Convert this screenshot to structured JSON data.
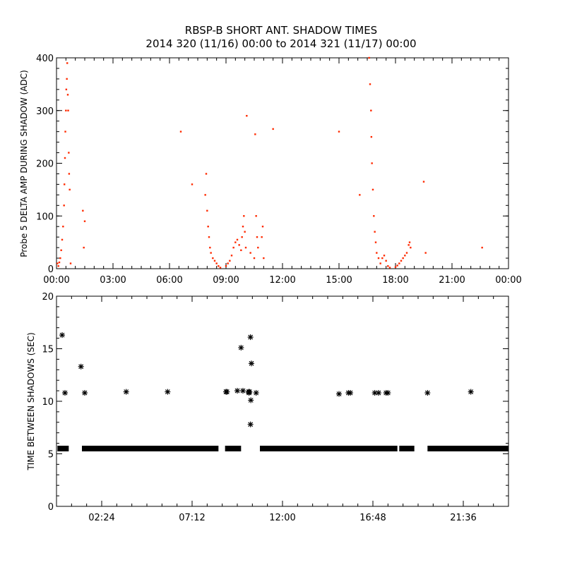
{
  "title_line1": "RBSP-B SHORT ANT. SHADOW TIMES",
  "title_line2": "2014 320 (11/16) 00:00 to 2014 321 (11/17) 00:00",
  "colors": {
    "top_series": "#ff2a00",
    "bottom_series": "#000000",
    "axes": "#000000"
  },
  "chart_data": [
    {
      "type": "scatter",
      "ylabel": "Probe 5 DELTA AMP DURING SHADOW (ADC)",
      "xlabel": "",
      "xlim": [
        0,
        24
      ],
      "ylim": [
        0,
        400
      ],
      "x_unit": "hours",
      "x_tick_values": [
        0,
        3,
        6,
        9,
        12,
        15,
        18,
        21,
        24
      ],
      "x_tick_labels": [
        "00:00",
        "03:00",
        "06:00",
        "09:00",
        "12:00",
        "15:00",
        "18:00",
        "21:00",
        "00:00"
      ],
      "y_tick_values": [
        0,
        100,
        200,
        300,
        400
      ],
      "y_tick_labels": [
        "0",
        "100",
        "200",
        "300",
        "400"
      ],
      "series": [
        {
          "points": [
            [
              0.05,
              10
            ],
            [
              0.1,
              5
            ],
            [
              0.15,
              12
            ],
            [
              0.2,
              20
            ],
            [
              0.25,
              35
            ],
            [
              0.3,
              55
            ],
            [
              0.35,
              80
            ],
            [
              0.4,
              120
            ],
            [
              0.42,
              160
            ],
            [
              0.45,
              210
            ],
            [
              0.47,
              260
            ],
            [
              0.5,
              300
            ],
            [
              0.52,
              340
            ],
            [
              0.55,
              360
            ],
            [
              0.57,
              390
            ],
            [
              0.6,
              330
            ],
            [
              0.62,
              300
            ],
            [
              0.65,
              220
            ],
            [
              0.67,
              180
            ],
            [
              0.7,
              150
            ],
            [
              0.75,
              10
            ],
            [
              1.4,
              110
            ],
            [
              1.45,
              40
            ],
            [
              1.5,
              90
            ],
            [
              6.6,
              260
            ],
            [
              7.2,
              160
            ],
            [
              7.9,
              140
            ],
            [
              7.95,
              180
            ],
            [
              8.0,
              110
            ],
            [
              8.05,
              80
            ],
            [
              8.1,
              60
            ],
            [
              8.15,
              40
            ],
            [
              8.2,
              30
            ],
            [
              8.3,
              20
            ],
            [
              8.4,
              15
            ],
            [
              8.5,
              10
            ],
            [
              8.6,
              5
            ],
            [
              8.7,
              2
            ],
            [
              9.0,
              5
            ],
            [
              9.1,
              10
            ],
            [
              9.2,
              15
            ],
            [
              9.3,
              25
            ],
            [
              9.4,
              40
            ],
            [
              9.5,
              50
            ],
            [
              9.6,
              55
            ],
            [
              9.7,
              45
            ],
            [
              9.8,
              35
            ],
            [
              9.85,
              60
            ],
            [
              9.9,
              80
            ],
            [
              9.95,
              100
            ],
            [
              10.0,
              70
            ],
            [
              10.05,
              40
            ],
            [
              10.1,
              290
            ],
            [
              10.3,
              30
            ],
            [
              10.5,
              20
            ],
            [
              10.55,
              255
            ],
            [
              10.6,
              100
            ],
            [
              10.65,
              60
            ],
            [
              10.7,
              40
            ],
            [
              10.9,
              60
            ],
            [
              10.95,
              80
            ],
            [
              11.0,
              20
            ],
            [
              11.5,
              265
            ],
            [
              15.0,
              260
            ],
            [
              16.1,
              140
            ],
            [
              16.6,
              400
            ],
            [
              16.65,
              350
            ],
            [
              16.7,
              300
            ],
            [
              16.72,
              250
            ],
            [
              16.75,
              200
            ],
            [
              16.8,
              150
            ],
            [
              16.85,
              100
            ],
            [
              16.9,
              70
            ],
            [
              16.95,
              50
            ],
            [
              17.0,
              30
            ],
            [
              17.1,
              20
            ],
            [
              17.2,
              10
            ],
            [
              17.3,
              20
            ],
            [
              17.4,
              25
            ],
            [
              17.5,
              15
            ],
            [
              17.6,
              5
            ],
            [
              17.7,
              2
            ],
            [
              18.0,
              3
            ],
            [
              18.1,
              6
            ],
            [
              18.2,
              10
            ],
            [
              18.3,
              15
            ],
            [
              18.4,
              20
            ],
            [
              18.5,
              25
            ],
            [
              18.6,
              30
            ],
            [
              18.7,
              45
            ],
            [
              18.75,
              50
            ],
            [
              18.8,
              40
            ],
            [
              19.5,
              165
            ],
            [
              19.6,
              30
            ],
            [
              22.6,
              40
            ]
          ]
        }
      ]
    },
    {
      "type": "scatter",
      "ylabel": "TIME BETWEEN SHADOWS (SEC)",
      "xlabel": "",
      "xlim": [
        0,
        24
      ],
      "ylim": [
        0,
        20
      ],
      "x_unit": "hours",
      "x_tick_values": [
        2.4,
        7.2,
        12.0,
        16.8,
        21.6
      ],
      "x_tick_labels": [
        "02:24",
        "07:12",
        "12:00",
        "16:48",
        "21:36"
      ],
      "y_tick_values": [
        0,
        5,
        10,
        15,
        20
      ],
      "y_tick_labels": [
        "0",
        "5",
        "10",
        "15",
        "20"
      ],
      "baseline": {
        "value": 5.5,
        "segments": [
          [
            0.05,
            0.65
          ],
          [
            1.35,
            8.6
          ],
          [
            8.95,
            9.8
          ],
          [
            10.8,
            18.1
          ],
          [
            18.2,
            19.0
          ],
          [
            19.7,
            24.0
          ]
        ]
      },
      "series": [
        {
          "points": [
            [
              0.3,
              16.3
            ],
            [
              0.45,
              10.8
            ],
            [
              1.3,
              13.3
            ],
            [
              1.5,
              10.8
            ],
            [
              3.7,
              10.9
            ],
            [
              5.9,
              10.9
            ],
            [
              9.0,
              10.9
            ],
            [
              9.05,
              10.9
            ],
            [
              9.6,
              11.0
            ],
            [
              9.8,
              15.1
            ],
            [
              9.9,
              11.0
            ],
            [
              10.2,
              10.9
            ],
            [
              10.22,
              10.8
            ],
            [
              10.25,
              10.9
            ],
            [
              10.3,
              16.1
            ],
            [
              10.35,
              13.6
            ],
            [
              10.32,
              10.1
            ],
            [
              10.3,
              7.8
            ],
            [
              10.6,
              10.8
            ],
            [
              15.0,
              10.7
            ],
            [
              15.5,
              10.8
            ],
            [
              15.6,
              10.8
            ],
            [
              16.9,
              10.8
            ],
            [
              17.1,
              10.8
            ],
            [
              17.5,
              10.8
            ],
            [
              17.6,
              10.8
            ],
            [
              19.7,
              10.8
            ],
            [
              22.0,
              10.9
            ]
          ]
        }
      ]
    }
  ]
}
